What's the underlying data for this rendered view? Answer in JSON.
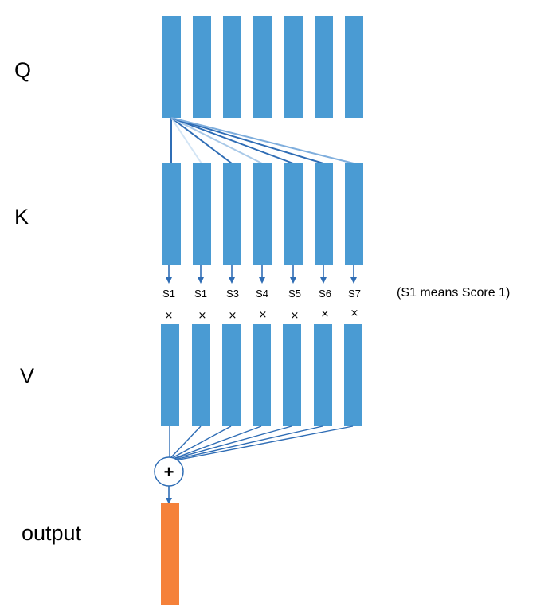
{
  "labels": {
    "q": "Q",
    "k": "K",
    "v": "V",
    "output": "output"
  },
  "scores": [
    "S1",
    "S1",
    "S3",
    "S4",
    "S5",
    "S6",
    "S7"
  ],
  "times_symbol": "×",
  "note": "(S1 means Score 1)",
  "sum_symbol": "+",
  "colors": {
    "vector": "#4a9bd3",
    "output": "#f5813a",
    "line_dark": "#2f6db5",
    "line_light": "#b9d5ee"
  }
}
